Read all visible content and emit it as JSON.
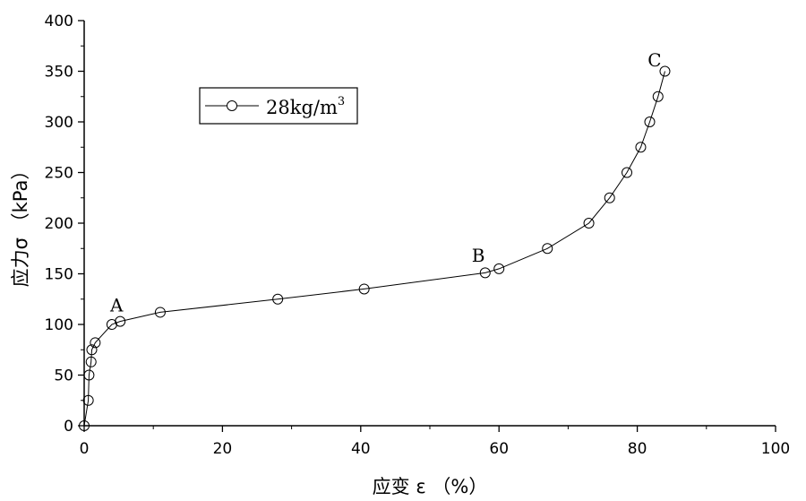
{
  "chart_data": {
    "type": "line",
    "xlabel": "应变 ε （%）",
    "ylabel": "应力σ （kPa）",
    "xlim": [
      0,
      100
    ],
    "ylim": [
      0,
      400
    ],
    "x_ticks": [
      0,
      20,
      40,
      60,
      80,
      100
    ],
    "y_ticks": [
      0,
      50,
      100,
      150,
      200,
      250,
      300,
      350,
      400
    ],
    "grid": false,
    "legend_position": "top-left",
    "series": [
      {
        "name": "28kg/m",
        "name_superscript": "3",
        "marker": "open-circle",
        "color": "#000000",
        "points": [
          [
            0.0,
            0
          ],
          [
            0.6,
            25
          ],
          [
            0.7,
            50
          ],
          [
            1.0,
            63
          ],
          [
            1.1,
            75
          ],
          [
            1.6,
            82
          ],
          [
            4.0,
            100
          ],
          [
            5.2,
            103
          ],
          [
            11.0,
            112
          ],
          [
            28.0,
            125
          ],
          [
            40.5,
            135
          ],
          [
            58.0,
            151
          ],
          [
            60.0,
            155
          ],
          [
            67.0,
            175
          ],
          [
            73.0,
            200
          ],
          [
            76.0,
            225
          ],
          [
            78.5,
            250
          ],
          [
            80.5,
            275
          ],
          [
            81.8,
            300
          ],
          [
            83.0,
            325
          ],
          [
            84.0,
            350
          ]
        ]
      }
    ],
    "annotations": [
      {
        "text": "A",
        "x": 4.7,
        "y": 113
      },
      {
        "text": "B",
        "x": 57.0,
        "y": 162
      },
      {
        "text": "C",
        "x": 82.5,
        "y": 355
      }
    ]
  }
}
